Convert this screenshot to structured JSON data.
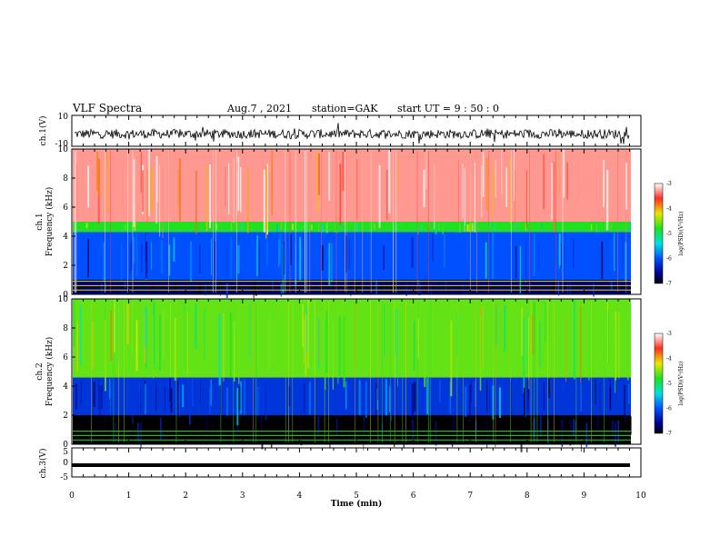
{
  "header": {
    "title": "VLF Spectra",
    "date": "Aug.7 , 2021",
    "station": "station=GAK",
    "start": "start UT = 9 : 50 : 0"
  },
  "chart_data": [
    {
      "type": "line",
      "ylabel": "ch.1(V)",
      "ylim": [
        -10,
        10
      ],
      "ytick_labels": [
        "10",
        "-10"
      ],
      "description_level": "noisy waveform around -2 V",
      "x": [
        0,
        10
      ],
      "baseline": -2
    },
    {
      "type": "heatmap",
      "ylabel": "ch.1\nFrequency (kHz)",
      "ylabel_lines": [
        "ch.1",
        "Frequency (kHz)"
      ],
      "ylim": [
        0,
        10
      ],
      "ytick_labels": [
        "0",
        "2",
        "4",
        "6",
        "8",
        "10"
      ],
      "bands": [
        {
          "from": 0,
          "to": 1.0,
          "level": -6.7
        },
        {
          "from": 1.0,
          "to": 4.3,
          "level": -6.0
        },
        {
          "from": 4.3,
          "to": 5.0,
          "level": -4.8
        },
        {
          "from": 5.0,
          "to": 10.0,
          "level": -3.3
        }
      ],
      "colorbar": {
        "label": "log(PSD)(V²/Hz)",
        "ticks": [
          "-3",
          "-4",
          "-5",
          "-6",
          "-7"
        ],
        "range": [
          -7,
          -3
        ]
      }
    },
    {
      "type": "heatmap",
      "ylabel": "ch.2\nFrequency (kHz)",
      "ylabel_lines": [
        "ch.2",
        "Frequency (kHz)"
      ],
      "ylim": [
        0,
        10
      ],
      "ytick_labels": [
        "0",
        "2",
        "4",
        "6",
        "8",
        "10"
      ],
      "bands": [
        {
          "from": 0,
          "to": 2.0,
          "level": -7.0
        },
        {
          "from": 2.0,
          "to": 4.6,
          "level": -6.2
        },
        {
          "from": 4.6,
          "to": 10.0,
          "level": -4.6
        }
      ],
      "colorbar": {
        "label": "log(PSD)(V²/Hz)",
        "ticks": [
          "-3",
          "-4",
          "-5",
          "-6",
          "-7"
        ],
        "range": [
          -7,
          -3
        ]
      }
    },
    {
      "type": "line",
      "ylabel": "ch.3(V)",
      "ylim": [
        -5,
        5
      ],
      "ytick_labels": [
        "5",
        "0",
        "-5"
      ],
      "x": [
        0,
        9.8
      ],
      "y": [
        -1.5,
        -1.5
      ]
    }
  ],
  "xaxis": {
    "label": "Time (min)",
    "range": [
      0,
      10
    ],
    "tick_labels": [
      "0",
      "1",
      "2",
      "3",
      "4",
      "5",
      "6",
      "7",
      "8",
      "9",
      "10"
    ]
  }
}
